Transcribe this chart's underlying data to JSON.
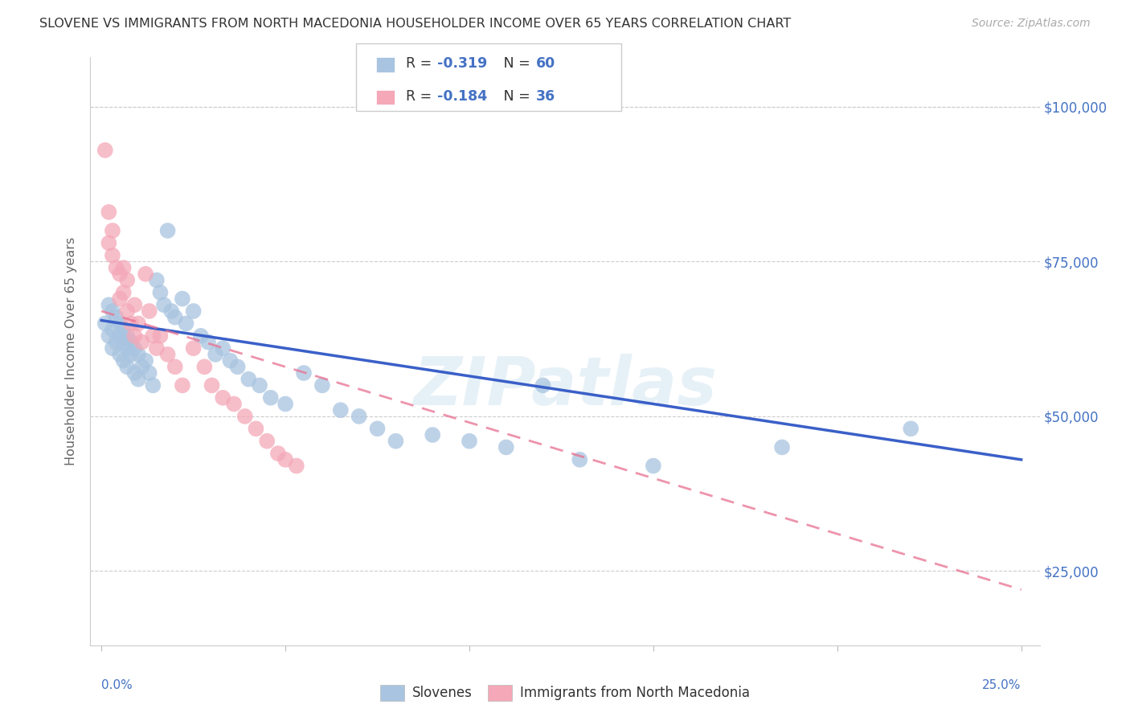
{
  "title": "SLOVENE VS IMMIGRANTS FROM NORTH MACEDONIA HOUSEHOLDER INCOME OVER 65 YEARS CORRELATION CHART",
  "source": "Source: ZipAtlas.com",
  "ylabel": "Householder Income Over 65 years",
  "right_yticks": [
    "$25,000",
    "$50,000",
    "$75,000",
    "$100,000"
  ],
  "right_ytick_vals": [
    25000,
    50000,
    75000,
    100000
  ],
  "xlim": [
    0.0,
    0.25
  ],
  "ylim": [
    13000,
    108000
  ],
  "legend_R_slovene_prefix": "R = ",
  "legend_R_slovene_val": "-0.319",
  "legend_N_slovene_prefix": "N = ",
  "legend_N_slovene_val": "60",
  "legend_R_macedonian_prefix": "R = ",
  "legend_R_macedonian_val": "-0.184",
  "legend_N_macedonian_prefix": "N = ",
  "legend_N_macedonian_val": "36",
  "slovene_color": "#a8c4e0",
  "macedonian_color": "#f4a8b8",
  "slovene_line_color": "#3a5fc8",
  "macedonian_line_color": "#e87090",
  "axis_color": "#4472c4",
  "watermark": "ZIPatlas",
  "slovene_x": [
    0.001,
    0.002,
    0.002,
    0.003,
    0.003,
    0.003,
    0.004,
    0.004,
    0.005,
    0.005,
    0.005,
    0.006,
    0.006,
    0.006,
    0.007,
    0.007,
    0.007,
    0.008,
    0.008,
    0.009,
    0.009,
    0.01,
    0.01,
    0.011,
    0.012,
    0.013,
    0.014,
    0.015,
    0.016,
    0.017,
    0.018,
    0.019,
    0.02,
    0.022,
    0.023,
    0.025,
    0.027,
    0.029,
    0.031,
    0.033,
    0.035,
    0.037,
    0.04,
    0.043,
    0.046,
    0.05,
    0.055,
    0.06,
    0.065,
    0.07,
    0.075,
    0.08,
    0.09,
    0.1,
    0.11,
    0.12,
    0.13,
    0.15,
    0.185,
    0.22
  ],
  "slovene_y": [
    65000,
    68000,
    63000,
    67000,
    64000,
    61000,
    66000,
    62000,
    65000,
    63000,
    60000,
    64000,
    62000,
    59000,
    63000,
    61000,
    58000,
    62000,
    60000,
    61000,
    57000,
    60000,
    56000,
    58000,
    59000,
    57000,
    55000,
    72000,
    70000,
    68000,
    80000,
    67000,
    66000,
    69000,
    65000,
    67000,
    63000,
    62000,
    60000,
    61000,
    59000,
    58000,
    56000,
    55000,
    53000,
    52000,
    57000,
    55000,
    51000,
    50000,
    48000,
    46000,
    47000,
    46000,
    45000,
    55000,
    43000,
    42000,
    45000,
    48000
  ],
  "macedonian_x": [
    0.001,
    0.002,
    0.002,
    0.003,
    0.003,
    0.004,
    0.005,
    0.005,
    0.006,
    0.006,
    0.007,
    0.007,
    0.008,
    0.009,
    0.009,
    0.01,
    0.011,
    0.012,
    0.013,
    0.014,
    0.015,
    0.016,
    0.018,
    0.02,
    0.022,
    0.025,
    0.028,
    0.03,
    0.033,
    0.036,
    0.039,
    0.042,
    0.045,
    0.048,
    0.05,
    0.053
  ],
  "macedonian_y": [
    93000,
    83000,
    78000,
    80000,
    76000,
    74000,
    73000,
    69000,
    74000,
    70000,
    67000,
    72000,
    65000,
    68000,
    63000,
    65000,
    62000,
    73000,
    67000,
    63000,
    61000,
    63000,
    60000,
    58000,
    55000,
    61000,
    58000,
    55000,
    53000,
    52000,
    50000,
    48000,
    46000,
    44000,
    43000,
    42000
  ],
  "slovene_line_x": [
    0.0,
    0.25
  ],
  "slovene_line_y": [
    65500,
    43000
  ],
  "macedonian_line_x": [
    0.0,
    0.25
  ],
  "macedonian_line_y": [
    67000,
    22000
  ]
}
